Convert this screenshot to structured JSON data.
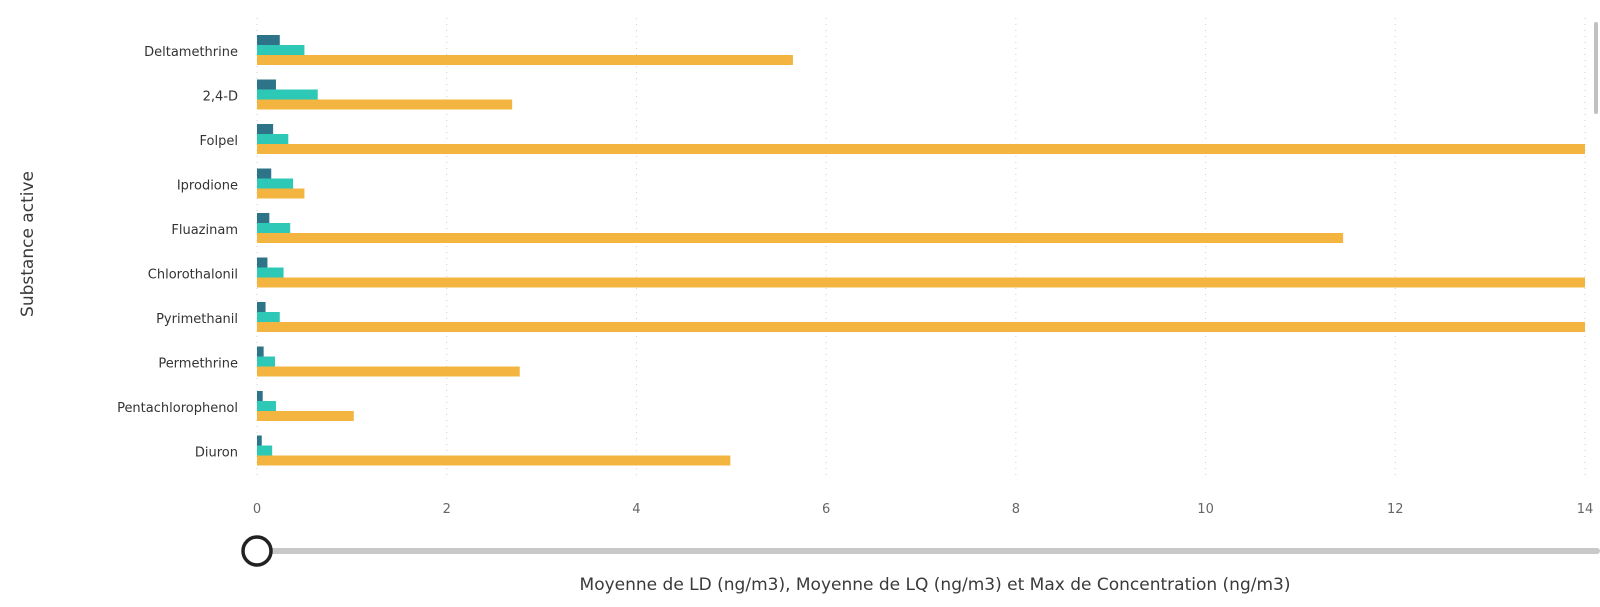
{
  "chart_data": {
    "type": "bar",
    "orientation": "horizontal",
    "categories": [
      "Deltamethrine",
      "2,4-D",
      "Folpel",
      "Iprodione",
      "Fluazinam",
      "Chlorothalonil",
      "Pyrimethanil",
      "Permethrine",
      "Pentachlorophenol",
      "Diuron"
    ],
    "series": [
      {
        "name": "Moyenne de LD (ng/m3)",
        "color": "#2e7489",
        "values": [
          0.24,
          0.2,
          0.17,
          0.15,
          0.13,
          0.11,
          0.09,
          0.07,
          0.06,
          0.05
        ]
      },
      {
        "name": "Moyenne de LQ (ng/m3)",
        "color": "#2dc9b6",
        "values": [
          0.5,
          0.64,
          0.33,
          0.38,
          0.35,
          0.28,
          0.24,
          0.19,
          0.2,
          0.16
        ]
      },
      {
        "name": "Max de Concentration (ng/m3)",
        "color": "#f3b53f",
        "values": [
          5.65,
          2.69,
          14,
          0.5,
          11.45,
          14,
          14,
          2.77,
          1.02,
          4.99
        ]
      }
    ],
    "xlim": [
      0,
      14
    ],
    "xticks": [
      "0",
      "2",
      "4",
      "6",
      "8",
      "10",
      "12",
      "14"
    ],
    "xlabel": "Moyenne de LD (ng/m3), Moyenne de LQ (ng/m3) et Max de Concentration (ng/m3)",
    "ylabel": "Substance active",
    "grid": "vertical dotted",
    "legend": "none"
  },
  "slider": {
    "value": 0
  }
}
